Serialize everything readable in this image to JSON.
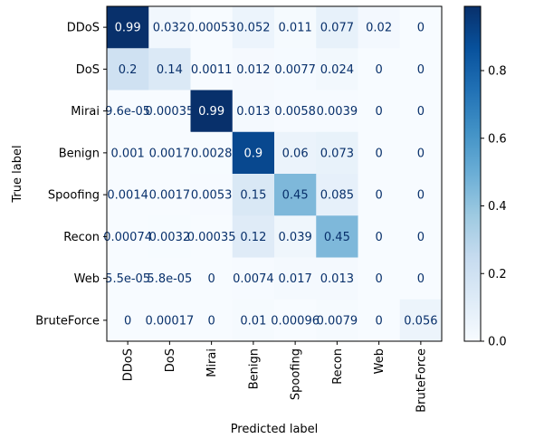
{
  "chart_data": {
    "type": "heatmap",
    "title": "",
    "xlabel": "Predicted label",
    "ylabel": "True label",
    "row_labels": [
      "DDoS",
      "DoS",
      "Mirai",
      "Benign",
      "Spoofing",
      "Recon",
      "Web",
      "BruteForce"
    ],
    "col_labels": [
      "DDoS",
      "DoS",
      "Mirai",
      "Benign",
      "Spoofing",
      "Recon",
      "Web",
      "BruteForce"
    ],
    "values": [
      [
        0.99,
        0.032,
        0.00053,
        0.052,
        0.011,
        0.077,
        0.02,
        0
      ],
      [
        0.2,
        0.14,
        0.0011,
        0.012,
        0.0077,
        0.024,
        0,
        0
      ],
      [
        9.6e-05,
        0.00035,
        0.99,
        0.013,
        0.0058,
        0.0039,
        0,
        0
      ],
      [
        0.001,
        0.0017,
        0.0028,
        0.9,
        0.06,
        0.073,
        0,
        0
      ],
      [
        0.0014,
        0.0017,
        0.0053,
        0.15,
        0.45,
        0.085,
        0,
        0
      ],
      [
        0.00074,
        0.0032,
        0.00035,
        0.12,
        0.039,
        0.45,
        0,
        0
      ],
      [
        5.5e-05,
        5.8e-05,
        0,
        0.0074,
        0.017,
        0.013,
        0,
        0
      ],
      [
        0,
        0.00017,
        0,
        0.01,
        0.00096,
        0.0079,
        0,
        0.056
      ]
    ],
    "cell_labels": [
      [
        "0.99",
        "0.032",
        "0.00053",
        "0.052",
        "0.011",
        "0.077",
        "0.02",
        "0"
      ],
      [
        "0.2",
        "0.14",
        "0.0011",
        "0.012",
        "0.0077",
        "0.024",
        "0",
        "0"
      ],
      [
        "9.6e-05",
        "0.00035",
        "0.99",
        "0.013",
        "0.0058",
        "0.0039",
        "0",
        "0"
      ],
      [
        "0.001",
        "0.0017",
        "0.0028",
        "0.9",
        "0.06",
        "0.073",
        "0",
        "0"
      ],
      [
        "0.0014",
        "0.0017",
        "0.0053",
        "0.15",
        "0.45",
        "0.085",
        "0",
        "0"
      ],
      [
        "0.00074",
        "0.0032",
        "0.00035",
        "0.12",
        "0.039",
        "0.45",
        "0",
        "0"
      ],
      [
        "5.5e-05",
        "5.8e-05",
        "0",
        "0.0074",
        "0.017",
        "0.013",
        "0",
        "0"
      ],
      [
        "0",
        "0.00017",
        "0",
        "0.01",
        "0.00096",
        "0.0079",
        "0",
        "0.056"
      ]
    ],
    "colormap": "Blues",
    "color_range": [
      0,
      0.99
    ],
    "colorbar_ticks": [
      "0.0",
      "0.2",
      "0.4",
      "0.6",
      "0.8"
    ],
    "colorbar_tick_values": [
      0,
      0.2,
      0.4,
      0.6,
      0.8
    ],
    "grid": false
  }
}
